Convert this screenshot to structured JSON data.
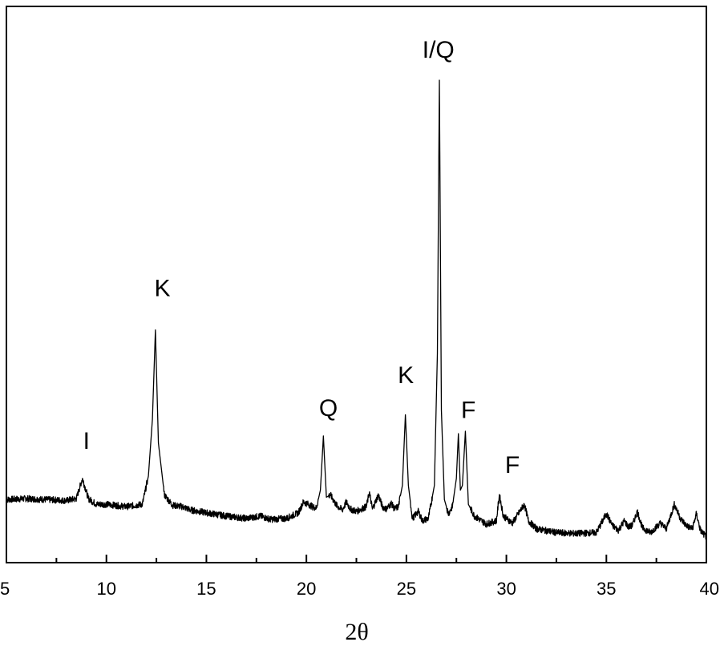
{
  "chart_data": {
    "type": "line",
    "title": "",
    "xlabel": "2θ",
    "ylabel": "",
    "xlim": [
      5,
      40
    ],
    "ylim": [
      0,
      1000
    ],
    "x_ticks": [
      5,
      10,
      15,
      20,
      25,
      30,
      35,
      40
    ],
    "x_tick_labels": [
      "5",
      "10",
      "15",
      "20",
      "25",
      "30",
      "35",
      "40"
    ],
    "grid": false,
    "legend": "none",
    "series": [
      {
        "color": "#000000",
        "x": [
          5.0,
          6.0,
          7.0,
          8.0,
          8.5,
          8.8,
          9.1,
          9.5,
          10.0,
          11.0,
          11.8,
          12.1,
          12.3,
          12.45,
          12.6,
          12.9,
          13.3,
          13.8,
          14.2,
          15.0,
          16.0,
          17.0,
          17.7,
          18.2,
          19.0,
          19.6,
          19.85,
          20.1,
          20.3,
          20.5,
          20.7,
          20.85,
          21.0,
          21.2,
          21.5,
          21.8,
          22.0,
          22.2,
          22.5,
          23.0,
          23.15,
          23.3,
          23.6,
          23.8,
          24.0,
          24.25,
          24.4,
          24.6,
          24.8,
          24.95,
          25.1,
          25.3,
          25.6,
          25.8,
          26.1,
          26.4,
          26.55,
          26.65,
          26.75,
          26.9,
          27.1,
          27.3,
          27.5,
          27.6,
          27.7,
          27.8,
          27.95,
          28.1,
          28.4,
          29.0,
          29.5,
          29.65,
          29.85,
          30.3,
          30.9,
          31.1,
          31.5,
          32.5,
          33.5,
          34.5,
          35.0,
          35.3,
          35.6,
          35.9,
          36.1,
          36.3,
          36.55,
          36.8,
          37.2,
          37.7,
          38.0,
          38.4,
          38.7,
          39.0,
          39.3,
          39.5,
          39.7,
          40.0
        ],
        "y": [
          110,
          112,
          110,
          108,
          112,
          155,
          112,
          100,
          100,
          95,
          100,
          160,
          280,
          470,
          230,
          120,
          98,
          95,
          88,
          82,
          75,
          70,
          75,
          68,
          70,
          82,
          105,
          100,
          95,
          92,
          130,
          245,
          115,
          120,
          98,
          88,
          105,
          90,
          85,
          95,
          125,
          90,
          120,
          95,
          90,
          102,
          90,
          95,
          140,
          290,
          140,
          70,
          85,
          65,
          70,
          140,
          420,
          1000,
          300,
          110,
          80,
          95,
          155,
          250,
          130,
          140,
          255,
          100,
          75,
          58,
          65,
          120,
          75,
          60,
          100,
          65,
          48,
          40,
          38,
          40,
          80,
          55,
          45,
          65,
          52,
          55,
          85,
          50,
          40,
          60,
          48,
          100,
          70,
          55,
          48,
          80,
          45,
          30
        ]
      }
    ],
    "annotations": [
      {
        "text": "I",
        "x": 9.0,
        "y": 218
      },
      {
        "text": "K",
        "x": 12.8,
        "y": 542
      },
      {
        "text": "Q",
        "x": 21.1,
        "y": 287
      },
      {
        "text": "K",
        "x": 24.97,
        "y": 357
      },
      {
        "text": "I/Q",
        "x": 26.6,
        "y": 1048
      },
      {
        "text": "F",
        "x": 28.1,
        "y": 283
      },
      {
        "text": "F",
        "x": 30.3,
        "y": 167
      }
    ]
  }
}
